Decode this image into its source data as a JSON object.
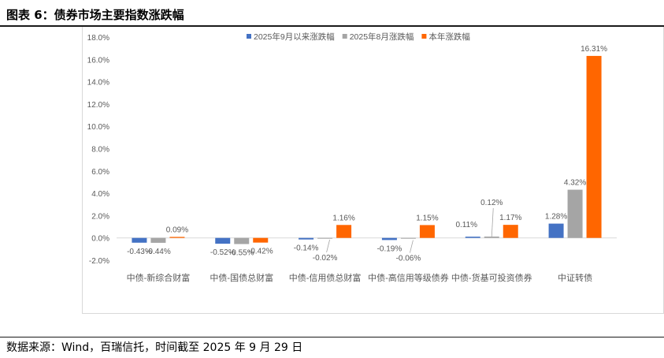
{
  "title": "图表 6：债券市场主要指数涨跌幅",
  "source": "数据来源：Wind，百瑞信托，时间截至 2025 年 9 月 29 日",
  "chart_data": {
    "type": "bar",
    "categories": [
      "中债-新综合财富",
      "中债-国债总财富",
      "中债-信用债总财富",
      "中债-高信用等级债券",
      "中债-货基可投资债券",
      "中证转债"
    ],
    "series": [
      {
        "name": "2025年9月以来涨跌幅",
        "color": "#4472c4",
        "values": [
          -0.43,
          -0.52,
          -0.14,
          -0.19,
          0.11,
          1.28
        ],
        "labels": [
          "-0.43%",
          "-0.52%",
          "-0.14%",
          "-0.19%",
          "0.11%",
          "1.28%"
        ]
      },
      {
        "name": "2025年8月涨跌幅",
        "color": "#a5a5a5",
        "values": [
          -0.44,
          -0.55,
          -0.02,
          -0.06,
          0.12,
          4.32
        ],
        "labels": [
          "-0.44%",
          "-0.55%",
          "-0.02%",
          "-0.06%",
          "0.12%",
          "4.32%"
        ]
      },
      {
        "name": "本年涨跌幅",
        "color": "#ff6600",
        "values": [
          0.09,
          -0.42,
          1.16,
          1.15,
          1.17,
          16.31
        ],
        "labels": [
          "0.09%",
          "-0.42%",
          "1.16%",
          "1.15%",
          "1.17%",
          "16.31%"
        ]
      }
    ],
    "ylim": [
      -2,
      18
    ],
    "yticks": [
      "-2.0%",
      "0.0%",
      "2.0%",
      "4.0%",
      "6.0%",
      "8.0%",
      "10.0%",
      "12.0%",
      "14.0%",
      "16.0%",
      "18.0%"
    ],
    "legend": "top-center",
    "grid": false
  }
}
